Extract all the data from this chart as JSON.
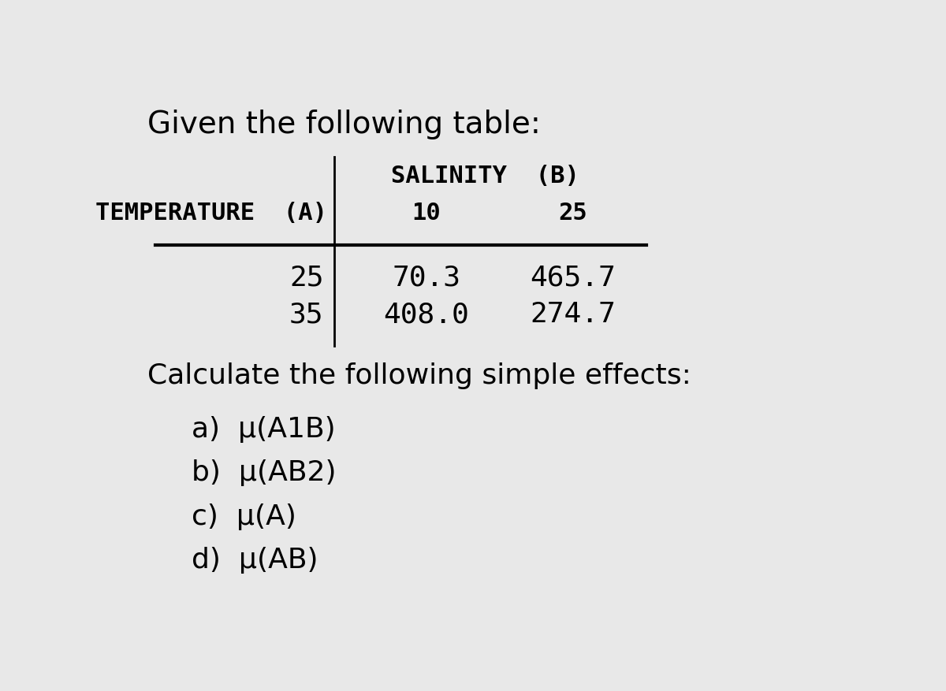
{
  "bg_color": "#e8e8e8",
  "title_text": "Given the following table:",
  "title_fontsize": 28,
  "title_font": "DejaVu Sans",
  "salinity_label": "SALINITY  (B)",
  "temp_label": "TEMPERATURE  (A)",
  "b_vals": [
    "10",
    "25"
  ],
  "a_vals": [
    "25",
    "35"
  ],
  "cell_data": [
    [
      "70.3",
      "465.7"
    ],
    [
      "408.0",
      "274.7"
    ]
  ],
  "calc_text": "Calculate the following simple effects:",
  "calc_fontsize": 26,
  "items": [
    "a)  μ(A1B)",
    "b)  μ(AB2)",
    "c)  μ(A)",
    "d)  μ(AB)"
  ],
  "item_fontsize": 26,
  "header_fontsize": 22,
  "cell_fontsize": 26,
  "mono_font": "DejaVu Sans Mono",
  "sans_font": "DejaVu Sans"
}
